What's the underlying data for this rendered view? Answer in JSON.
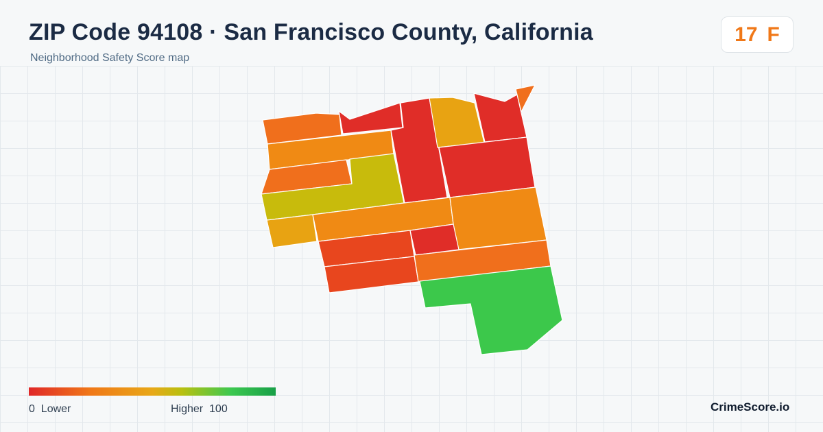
{
  "header": {
    "title": "ZIP Code 94108 · San Francisco County, California",
    "subtitle": "Neighborhood Safety Score map"
  },
  "score": {
    "value": "17",
    "grade": "F",
    "color": "#f07818"
  },
  "legend": {
    "min_value": "0",
    "min_label": "Lower",
    "max_label": "Higher",
    "max_value": "100",
    "colors": [
      "#e02828",
      "#f07818",
      "#e8a818",
      "#b8c010",
      "#3cc850",
      "#18a048"
    ]
  },
  "map": {
    "block_colors": {
      "red": "#e02d28",
      "red_orange": "#e8461e",
      "orange": "#f06f1c",
      "amber": "#f08a14",
      "gold": "#e8a312",
      "olive": "#c8bb0c",
      "green": "#3cc84b"
    }
  },
  "brand": "CrimeScore.io"
}
